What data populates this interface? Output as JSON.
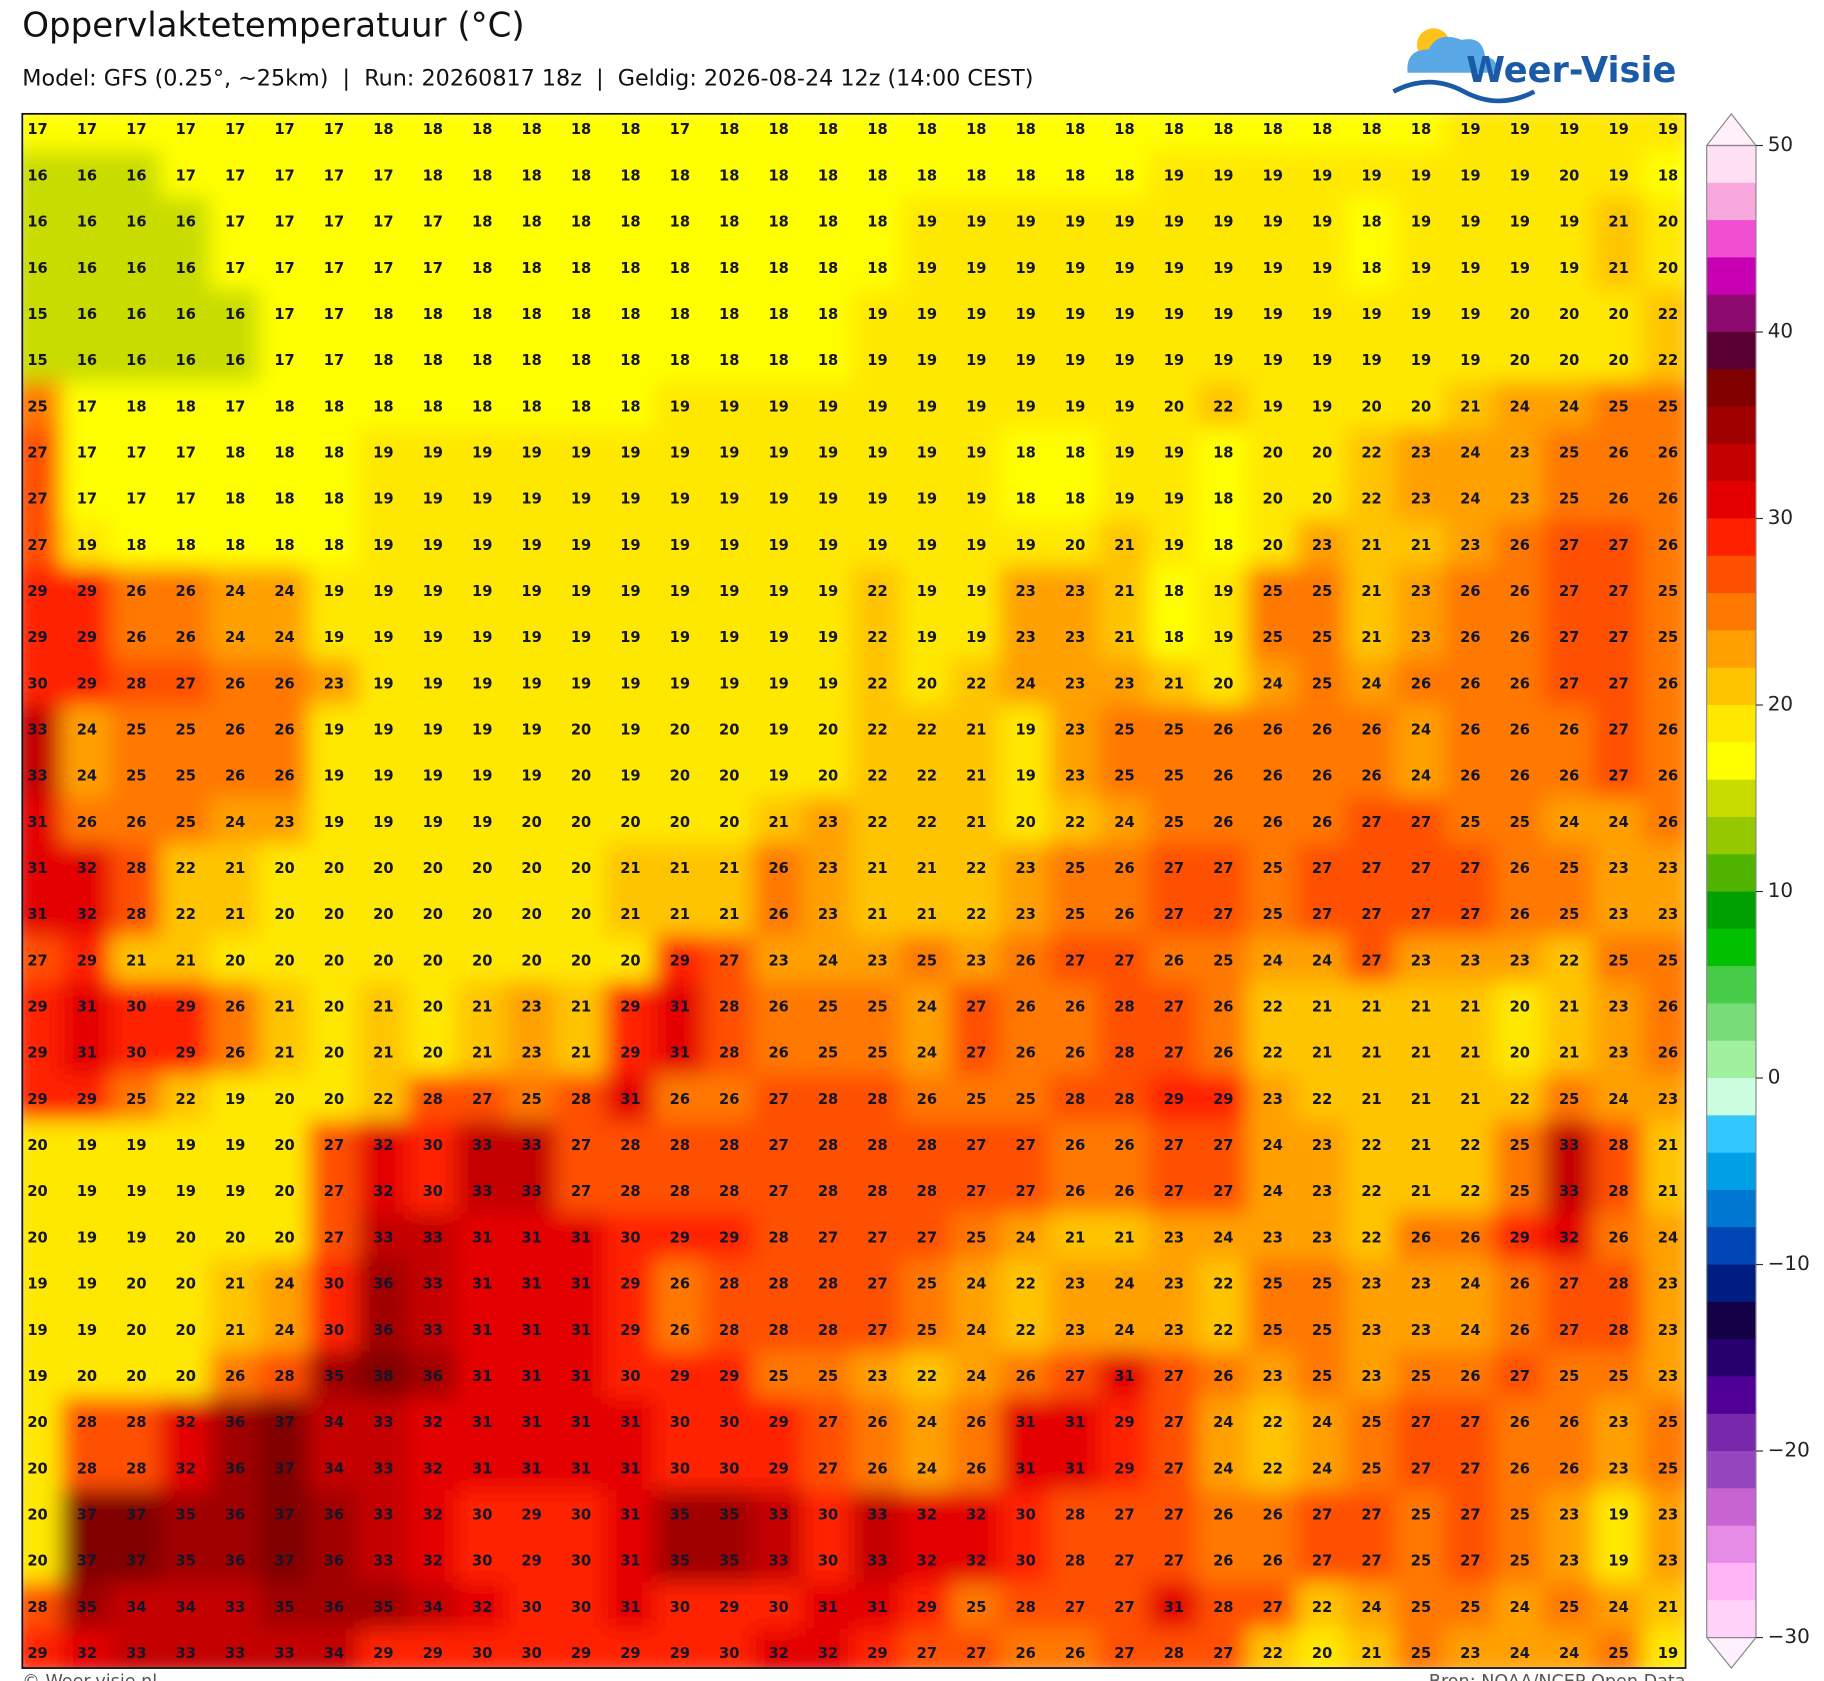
{
  "title": "Oppervlaktetemperatuur (°C)",
  "subtitle": "Model: GFS (0.25°, ~25km)  |  Run: 20260817 18z  |  Geldig: 2026-08-24 12z (14:00 CEST)",
  "logo": "Weer-Visie",
  "footer_left": "© Weer-visie.nl",
  "footer_right": "Bron: NOAA/NCEP Open Data",
  "grid": {
    "rows": [
      [
        17,
        17,
        17,
        17,
        17,
        17,
        17,
        18,
        18,
        18,
        18,
        18,
        18,
        17,
        18,
        18,
        18,
        18,
        18,
        18,
        18,
        18,
        18,
        18,
        18,
        18,
        18,
        18,
        18,
        19,
        19,
        19,
        19,
        19
      ],
      [
        16,
        16,
        16,
        17,
        17,
        17,
        17,
        17,
        18,
        18,
        18,
        18,
        18,
        18,
        18,
        18,
        18,
        18,
        18,
        18,
        18,
        18,
        18,
        19,
        19,
        19,
        19,
        19,
        19,
        19,
        19,
        20,
        19,
        18
      ],
      [
        16,
        16,
        16,
        16,
        17,
        17,
        17,
        17,
        17,
        18,
        18,
        18,
        18,
        18,
        18,
        18,
        18,
        18,
        19,
        19,
        19,
        19,
        19,
        19,
        19,
        19,
        19,
        18,
        19,
        19,
        19,
        19,
        21,
        20
      ],
      [
        16,
        16,
        16,
        16,
        17,
        17,
        17,
        17,
        17,
        18,
        18,
        18,
        18,
        18,
        18,
        18,
        18,
        18,
        19,
        19,
        19,
        19,
        19,
        19,
        19,
        19,
        19,
        18,
        19,
        19,
        19,
        19,
        21,
        20
      ],
      [
        15,
        16,
        16,
        16,
        16,
        17,
        17,
        18,
        18,
        18,
        18,
        18,
        18,
        18,
        18,
        18,
        18,
        19,
        19,
        19,
        19,
        19,
        19,
        19,
        19,
        19,
        19,
        19,
        19,
        19,
        20,
        20,
        20,
        22
      ],
      [
        15,
        16,
        16,
        16,
        16,
        17,
        17,
        18,
        18,
        18,
        18,
        18,
        18,
        18,
        18,
        18,
        18,
        19,
        19,
        19,
        19,
        19,
        19,
        19,
        19,
        19,
        19,
        19,
        19,
        19,
        20,
        20,
        20,
        22
      ],
      [
        25,
        17,
        18,
        18,
        17,
        18,
        18,
        18,
        18,
        18,
        18,
        18,
        18,
        19,
        19,
        19,
        19,
        19,
        19,
        19,
        19,
        19,
        19,
        20,
        22,
        19,
        19,
        20,
        20,
        21,
        24,
        24,
        25,
        25
      ],
      [
        27,
        17,
        17,
        17,
        18,
        18,
        18,
        19,
        19,
        19,
        19,
        19,
        19,
        19,
        19,
        19,
        19,
        19,
        19,
        19,
        18,
        18,
        19,
        19,
        18,
        20,
        20,
        22,
        23,
        24,
        23,
        25,
        26,
        26
      ],
      [
        27,
        17,
        17,
        17,
        18,
        18,
        18,
        19,
        19,
        19,
        19,
        19,
        19,
        19,
        19,
        19,
        19,
        19,
        19,
        19,
        18,
        18,
        19,
        19,
        18,
        20,
        20,
        22,
        23,
        24,
        23,
        25,
        26,
        26
      ],
      [
        27,
        19,
        18,
        18,
        18,
        18,
        18,
        19,
        19,
        19,
        19,
        19,
        19,
        19,
        19,
        19,
        19,
        19,
        19,
        19,
        19,
        20,
        21,
        19,
        18,
        20,
        23,
        21,
        21,
        23,
        26,
        27,
        27,
        26
      ],
      [
        29,
        29,
        26,
        26,
        24,
        24,
        19,
        19,
        19,
        19,
        19,
        19,
        19,
        19,
        19,
        19,
        19,
        22,
        19,
        19,
        23,
        23,
        21,
        18,
        19,
        25,
        25,
        21,
        23,
        26,
        26,
        27,
        27,
        25
      ],
      [
        29,
        29,
        26,
        26,
        24,
        24,
        19,
        19,
        19,
        19,
        19,
        19,
        19,
        19,
        19,
        19,
        19,
        22,
        19,
        19,
        23,
        23,
        21,
        18,
        19,
        25,
        25,
        21,
        23,
        26,
        26,
        27,
        27,
        25
      ],
      [
        30,
        29,
        28,
        27,
        26,
        26,
        23,
        19,
        19,
        19,
        19,
        19,
        19,
        19,
        19,
        19,
        19,
        22,
        20,
        22,
        24,
        23,
        23,
        21,
        20,
        24,
        25,
        24,
        26,
        26,
        26,
        27,
        27,
        26
      ],
      [
        33,
        24,
        25,
        25,
        26,
        26,
        19,
        19,
        19,
        19,
        19,
        20,
        19,
        20,
        20,
        19,
        20,
        22,
        22,
        21,
        19,
        23,
        25,
        25,
        26,
        26,
        26,
        26,
        24,
        26,
        26,
        26,
        27,
        26
      ],
      [
        33,
        24,
        25,
        25,
        26,
        26,
        19,
        19,
        19,
        19,
        19,
        20,
        19,
        20,
        20,
        19,
        20,
        22,
        22,
        21,
        19,
        23,
        25,
        25,
        26,
        26,
        26,
        26,
        24,
        26,
        26,
        26,
        27,
        26
      ],
      [
        31,
        26,
        26,
        25,
        24,
        23,
        19,
        19,
        19,
        19,
        20,
        20,
        20,
        20,
        20,
        21,
        23,
        22,
        22,
        21,
        20,
        22,
        24,
        25,
        26,
        26,
        26,
        27,
        27,
        25,
        25,
        24,
        24,
        26
      ],
      [
        31,
        32,
        28,
        22,
        21,
        20,
        20,
        20,
        20,
        20,
        20,
        20,
        21,
        21,
        21,
        26,
        23,
        21,
        21,
        22,
        23,
        25,
        26,
        27,
        27,
        25,
        27,
        27,
        27,
        27,
        26,
        25,
        23,
        23
      ],
      [
        31,
        32,
        28,
        22,
        21,
        20,
        20,
        20,
        20,
        20,
        20,
        20,
        21,
        21,
        21,
        26,
        23,
        21,
        21,
        22,
        23,
        25,
        26,
        27,
        27,
        25,
        27,
        27,
        27,
        27,
        26,
        25,
        23,
        23
      ],
      [
        27,
        29,
        21,
        21,
        20,
        20,
        20,
        20,
        20,
        20,
        20,
        20,
        20,
        29,
        27,
        23,
        24,
        23,
        25,
        23,
        26,
        27,
        27,
        26,
        25,
        24,
        24,
        27,
        23,
        23,
        23,
        22,
        25,
        25
      ],
      [
        29,
        31,
        30,
        29,
        26,
        21,
        20,
        21,
        20,
        21,
        23,
        21,
        29,
        31,
        28,
        26,
        25,
        25,
        24,
        27,
        26,
        26,
        28,
        27,
        26,
        22,
        21,
        21,
        21,
        21,
        20,
        21,
        23,
        26
      ],
      [
        29,
        31,
        30,
        29,
        26,
        21,
        20,
        21,
        20,
        21,
        23,
        21,
        29,
        31,
        28,
        26,
        25,
        25,
        24,
        27,
        26,
        26,
        28,
        27,
        26,
        22,
        21,
        21,
        21,
        21,
        20,
        21,
        23,
        26
      ],
      [
        29,
        29,
        25,
        22,
        19,
        20,
        20,
        22,
        28,
        27,
        25,
        28,
        31,
        26,
        26,
        27,
        28,
        28,
        26,
        25,
        25,
        28,
        28,
        29,
        29,
        23,
        22,
        21,
        21,
        21,
        22,
        25,
        24,
        23
      ],
      [
        20,
        19,
        19,
        19,
        19,
        20,
        27,
        32,
        30,
        33,
        33,
        27,
        28,
        28,
        28,
        27,
        28,
        28,
        28,
        27,
        27,
        26,
        26,
        27,
        27,
        24,
        23,
        22,
        21,
        22,
        25,
        33,
        28,
        21
      ],
      [
        20,
        19,
        19,
        19,
        19,
        20,
        27,
        32,
        30,
        33,
        33,
        27,
        28,
        28,
        28,
        27,
        28,
        28,
        28,
        27,
        27,
        26,
        26,
        27,
        27,
        24,
        23,
        22,
        21,
        22,
        25,
        33,
        28,
        21
      ],
      [
        20,
        19,
        19,
        20,
        20,
        20,
        27,
        33,
        33,
        31,
        31,
        31,
        30,
        29,
        29,
        28,
        27,
        27,
        27,
        25,
        24,
        21,
        21,
        23,
        24,
        23,
        23,
        22,
        26,
        26,
        29,
        32,
        26,
        24
      ],
      [
        19,
        19,
        20,
        20,
        21,
        24,
        30,
        36,
        33,
        31,
        31,
        31,
        29,
        26,
        28,
        28,
        28,
        27,
        25,
        24,
        22,
        23,
        24,
        23,
        22,
        25,
        25,
        23,
        23,
        24,
        26,
        27,
        28,
        23
      ],
      [
        19,
        19,
        20,
        20,
        21,
        24,
        30,
        36,
        33,
        31,
        31,
        31,
        29,
        26,
        28,
        28,
        28,
        27,
        25,
        24,
        22,
        23,
        24,
        23,
        22,
        25,
        25,
        23,
        23,
        24,
        26,
        27,
        28,
        23
      ],
      [
        19,
        20,
        20,
        20,
        26,
        28,
        35,
        38,
        36,
        31,
        31,
        31,
        30,
        29,
        29,
        25,
        25,
        23,
        22,
        24,
        26,
        27,
        31,
        27,
        26,
        23,
        25,
        23,
        25,
        26,
        27,
        25,
        25,
        23
      ],
      [
        20,
        28,
        28,
        32,
        36,
        37,
        34,
        33,
        32,
        31,
        31,
        31,
        31,
        30,
        30,
        29,
        27,
        26,
        24,
        26,
        31,
        31,
        29,
        27,
        24,
        22,
        24,
        25,
        27,
        27,
        26,
        26,
        23,
        25
      ],
      [
        20,
        28,
        28,
        32,
        36,
        37,
        34,
        33,
        32,
        31,
        31,
        31,
        31,
        30,
        30,
        29,
        27,
        26,
        24,
        26,
        31,
        31,
        29,
        27,
        24,
        22,
        24,
        25,
        27,
        27,
        26,
        26,
        23,
        25
      ],
      [
        20,
        37,
        37,
        35,
        36,
        37,
        36,
        33,
        32,
        30,
        29,
        30,
        31,
        35,
        35,
        33,
        30,
        33,
        32,
        32,
        30,
        28,
        27,
        27,
        26,
        26,
        27,
        27,
        25,
        27,
        25,
        23,
        19,
        23
      ],
      [
        20,
        37,
        37,
        35,
        36,
        37,
        36,
        33,
        32,
        30,
        29,
        30,
        31,
        35,
        35,
        33,
        30,
        33,
        32,
        32,
        30,
        28,
        27,
        27,
        26,
        26,
        27,
        27,
        25,
        27,
        25,
        23,
        19,
        23
      ],
      [
        28,
        35,
        34,
        34,
        33,
        35,
        36,
        35,
        34,
        32,
        30,
        30,
        31,
        30,
        29,
        30,
        31,
        31,
        29,
        25,
        28,
        27,
        27,
        31,
        28,
        27,
        22,
        24,
        25,
        25,
        24,
        25,
        24,
        21
      ],
      [
        29,
        32,
        33,
        33,
        33,
        33,
        34,
        29,
        29,
        30,
        30,
        29,
        29,
        29,
        30,
        32,
        32,
        29,
        27,
        27,
        26,
        26,
        27,
        28,
        27,
        22,
        20,
        21,
        25,
        23,
        24,
        24,
        25,
        19
      ]
    ]
  },
  "colorbar": {
    "range": [
      -30,
      50
    ],
    "ticks": [
      50,
      40,
      30,
      20,
      10,
      0,
      {
        "value": -10,
        "label": "−10"
      },
      {
        "value": -20,
        "label": "−20"
      },
      {
        "value": -30,
        "label": "−30"
      }
    ],
    "colors": [
      "#ffe0f4",
      "#f8a8dc",
      "#f050d0",
      "#c800b4",
      "#8c0a6e",
      "#5a0032",
      "#800000",
      "#a00000",
      "#c40000",
      "#e40000",
      "#ff2000",
      "#ff5000",
      "#ff7800",
      "#ffa000",
      "#ffc400",
      "#ffe800",
      "#ffff00",
      "#c8dc00",
      "#96c800",
      "#50b400",
      "#00a000",
      "#00c000",
      "#46cc46",
      "#78dc78",
      "#a0f0a0",
      "#ccffe0",
      "#32c8ff",
      "#00a0e6",
      "#0078d2",
      "#0046b4",
      "#001e82",
      "#140046",
      "#28006e",
      "#500096",
      "#7828aa",
      "#9646be",
      "#c864d2",
      "#e68ce6",
      "#ffb4f5",
      "#ffd2fa"
    ]
  }
}
